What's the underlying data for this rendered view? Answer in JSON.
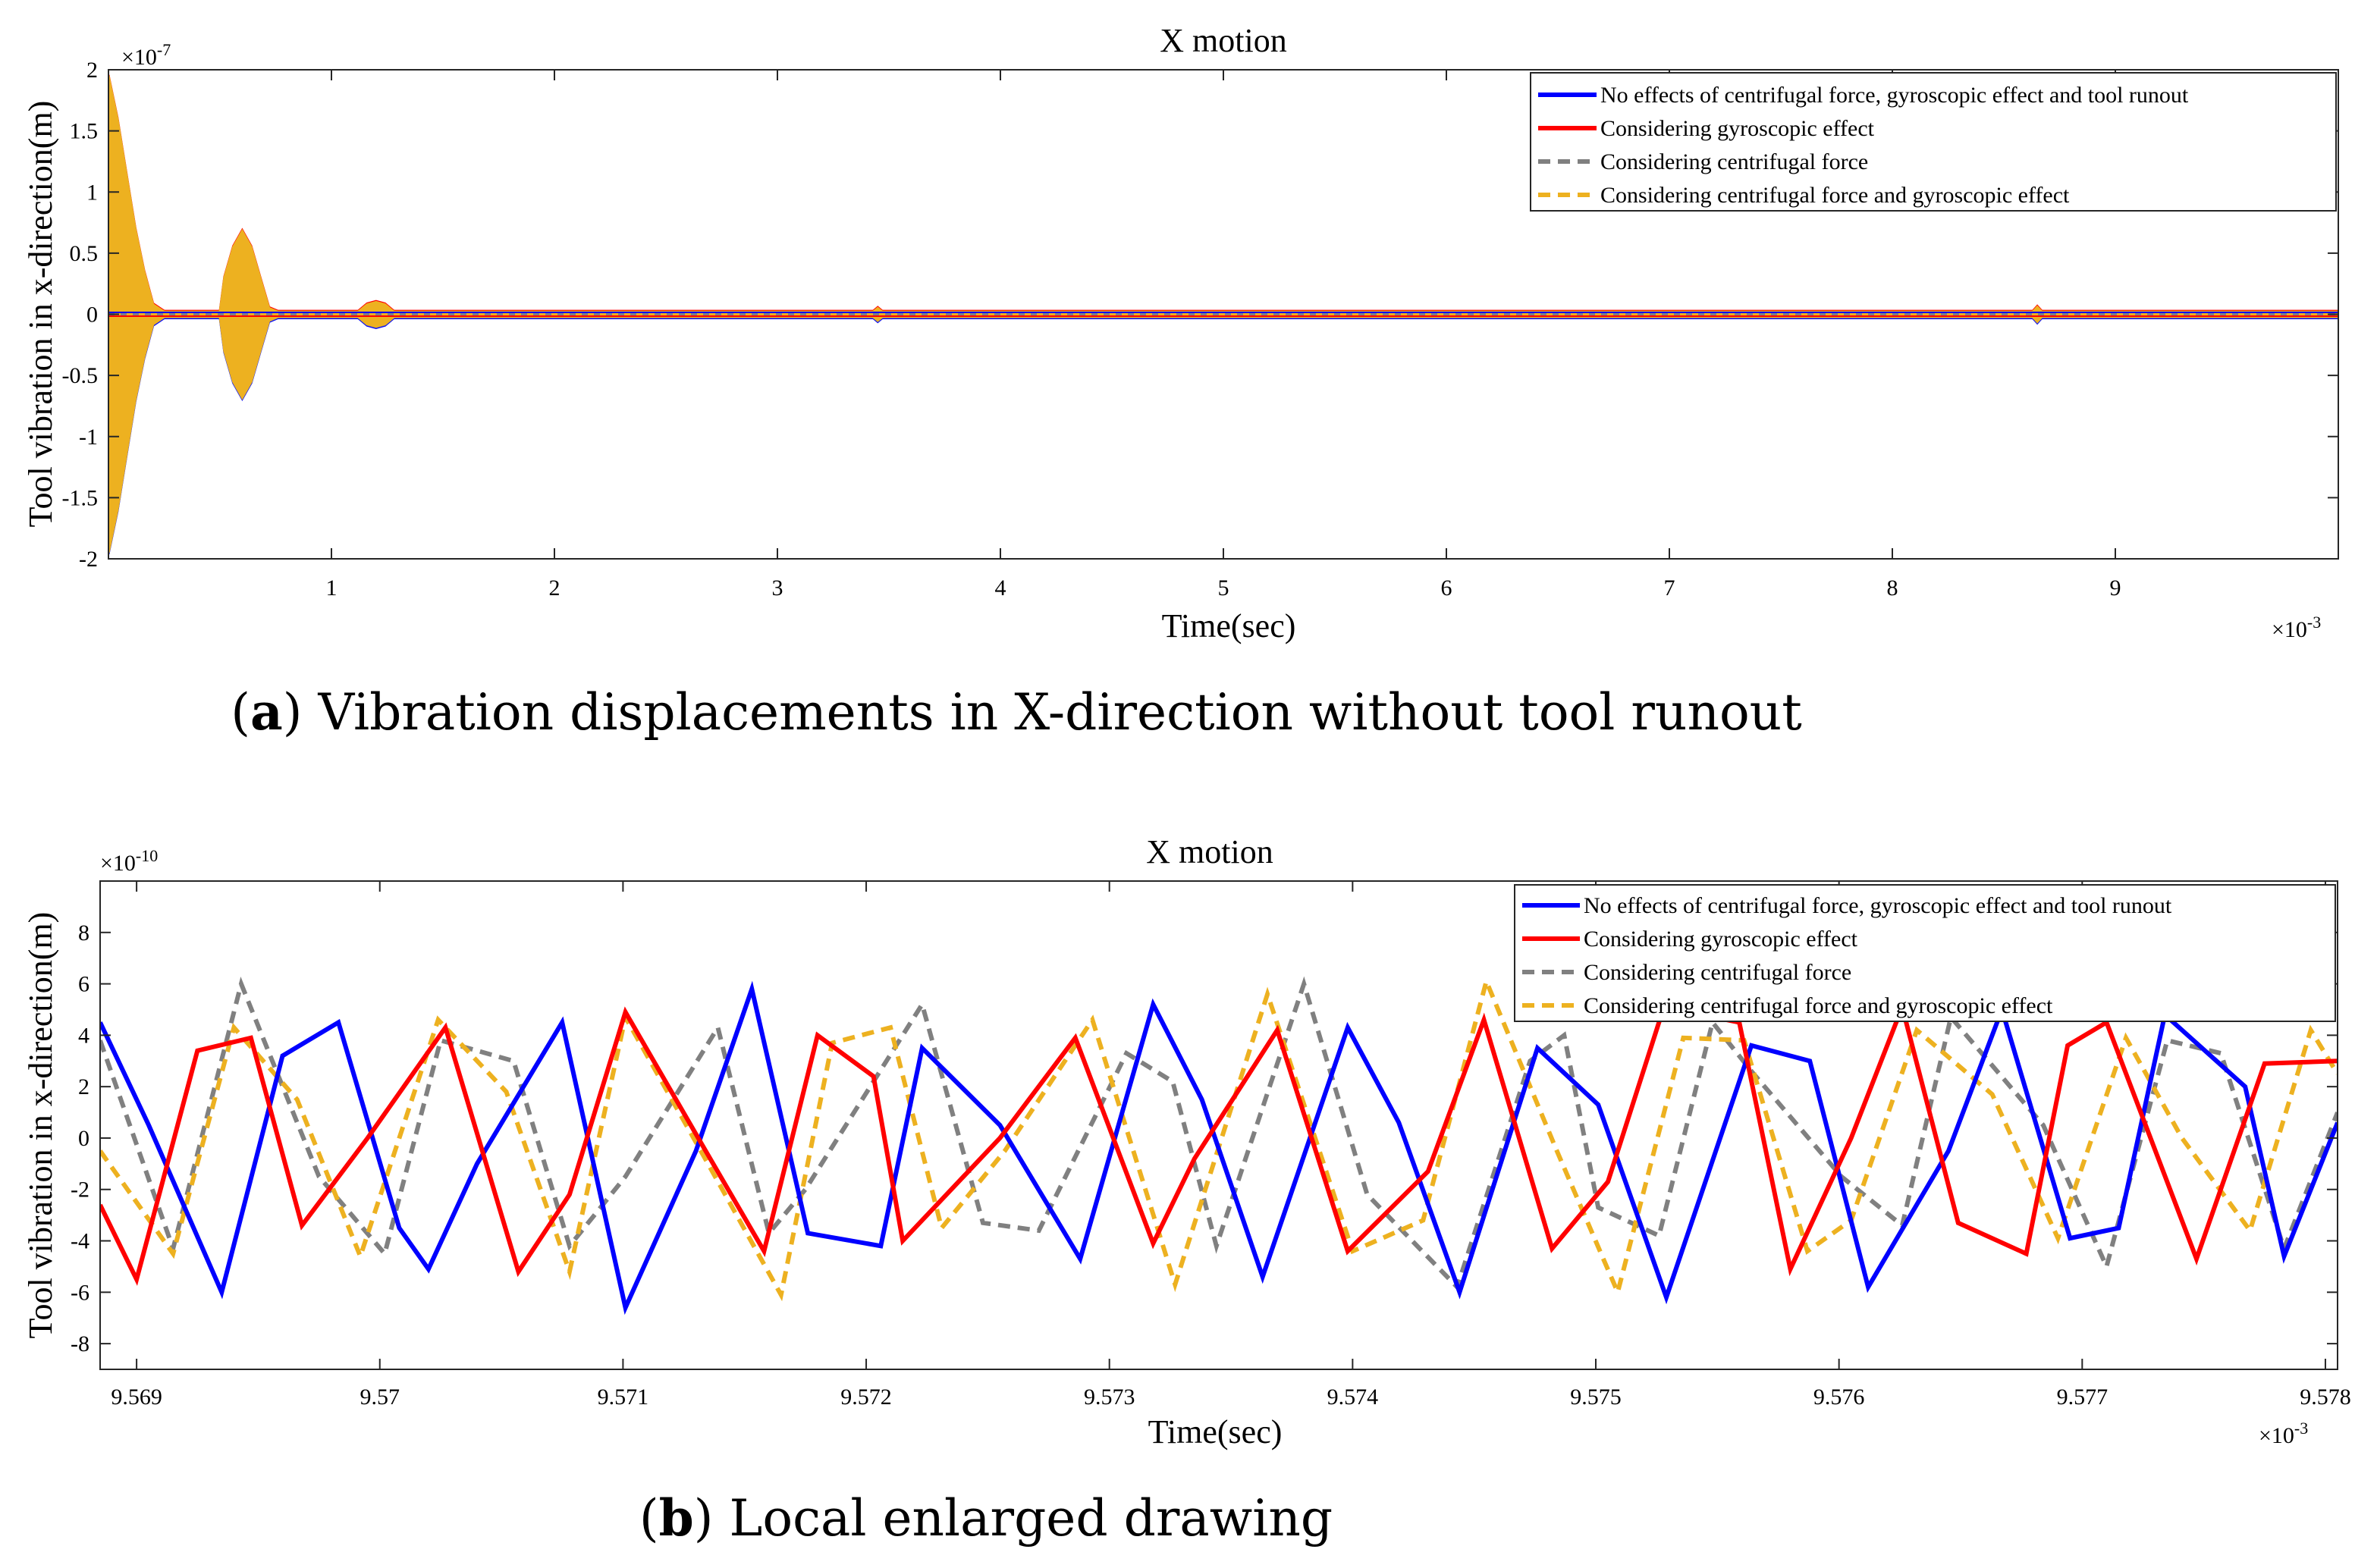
{
  "figure": {
    "caption_a_letter": "a",
    "caption_a_text": " Vibration displacements in X-direction without tool runout",
    "caption_b_letter": "b",
    "caption_b_text": " Local enlarged drawing"
  },
  "colors": {
    "blue": "#0000ff",
    "red": "#ff0000",
    "gray": "#808080",
    "orange": "#edb120",
    "axes": "#262626"
  },
  "chart_data": [
    {
      "type": "line",
      "title": "X motion",
      "xlabel": "Time(sec)",
      "ylabel": "Tool vibration in x-direction(m)",
      "x_exponent": "×10",
      "x_exponent_power": "-3",
      "y_exponent": "×10",
      "y_exponent_power": "-7",
      "xlim": [
        0,
        10
      ],
      "ylim": [
        -2,
        2
      ],
      "x_ticks": [
        1,
        2,
        3,
        4,
        5,
        6,
        7,
        8,
        9
      ],
      "x_tick_labels": [
        "1",
        "2",
        "3",
        "4",
        "5",
        "6",
        "7",
        "8",
        "9"
      ],
      "y_ticks": [
        -2,
        -1.5,
        -1,
        -0.5,
        0,
        0.5,
        1,
        1.5,
        2
      ],
      "y_tick_labels": [
        "-2",
        "-1.5",
        "-1",
        "-0.5",
        "0",
        "0.5",
        "1",
        "1.5",
        "2"
      ],
      "legend_position": "top-right",
      "series": [
        {
          "name": "No effects of centrifugal force, gyroscopic effect and tool runout",
          "color": "#0000ff",
          "style": "solid"
        },
        {
          "name": "Considering gyroscopic effect",
          "color": "#ff0000",
          "style": "solid"
        },
        {
          "name": "Considering centrifugal force",
          "color": "#808080",
          "style": "dashed"
        },
        {
          "name": "Considering centrifugal force and gyroscopic effect",
          "color": "#edb120",
          "style": "dashed"
        }
      ],
      "envelope": [
        [
          0,
          1.95
        ],
        [
          0.04,
          1.6
        ],
        [
          0.08,
          1.15
        ],
        [
          0.12,
          0.7
        ],
        [
          0.16,
          0.35
        ],
        [
          0.2,
          0.08
        ],
        [
          0.25,
          0.02
        ],
        [
          0.5,
          0.02
        ],
        [
          0.52,
          0.3
        ],
        [
          0.56,
          0.55
        ],
        [
          0.6,
          0.68
        ],
        [
          0.64,
          0.55
        ],
        [
          0.68,
          0.3
        ],
        [
          0.72,
          0.05
        ],
        [
          0.76,
          0.02
        ],
        [
          1.12,
          0.02
        ],
        [
          1.16,
          0.08
        ],
        [
          1.2,
          0.1
        ],
        [
          1.24,
          0.08
        ],
        [
          1.28,
          0.02
        ],
        [
          3.43,
          0.02
        ],
        [
          3.45,
          0.05
        ],
        [
          3.47,
          0.02
        ],
        [
          8.63,
          0.02
        ],
        [
          8.65,
          0.06
        ],
        [
          8.67,
          0.02
        ],
        [
          10,
          0.02
        ]
      ]
    },
    {
      "type": "line",
      "title": "X motion",
      "xlabel": "Time(sec)",
      "ylabel": "Tool vibration in x-direction(m)",
      "x_exponent": "×10",
      "x_exponent_power": "-3",
      "y_exponent": "×10",
      "y_exponent_power": "-10",
      "xlim": [
        9.56885,
        9.57805
      ],
      "ylim": [
        -9,
        10
      ],
      "x_ticks": [
        9.569,
        9.57,
        9.571,
        9.572,
        9.573,
        9.574,
        9.575,
        9.576,
        9.577,
        9.578
      ],
      "x_tick_labels": [
        "9.569",
        "9.57",
        "9.571",
        "9.572",
        "9.573",
        "9.574",
        "9.575",
        "9.576",
        "9.577",
        "9.578"
      ],
      "y_ticks": [
        -8,
        -6,
        -4,
        -2,
        0,
        2,
        4,
        6,
        8
      ],
      "y_tick_labels": [
        "-8",
        "-6",
        "-4",
        "-2",
        "0",
        "2",
        "4",
        "6",
        "8"
      ],
      "legend_position": "top-right",
      "series": [
        {
          "name": "No effects of centrifugal force, gyroscopic effect and tool runout",
          "color": "#0000ff",
          "style": "solid",
          "points": [
            [
              9.56885,
              4.5
            ],
            [
              9.56905,
              0.5
            ],
            [
              9.56935,
              -6
            ],
            [
              9.5696,
              3.2
            ],
            [
              9.56983,
              4.5
            ],
            [
              9.57008,
              -3.5
            ],
            [
              9.5702,
              -5.1
            ],
            [
              9.5704,
              -1
            ],
            [
              9.57075,
              4.5
            ],
            [
              9.57101,
              -6.6
            ],
            [
              9.5713,
              -0.5
            ],
            [
              9.57153,
              5.8
            ],
            [
              9.57176,
              -3.7
            ],
            [
              9.57206,
              -4.2
            ],
            [
              9.57223,
              3.5
            ],
            [
              9.57255,
              0.5
            ],
            [
              9.57288,
              -4.7
            ],
            [
              9.57318,
              5.2
            ],
            [
              9.57338,
              1.5
            ],
            [
              9.57363,
              -5.4
            ],
            [
              9.57398,
              4.3
            ],
            [
              9.57419,
              0.6
            ],
            [
              9.57444,
              -6
            ],
            [
              9.57476,
              3.5
            ],
            [
              9.57501,
              1.3
            ],
            [
              9.57529,
              -6.2
            ],
            [
              9.57564,
              3.6
            ],
            [
              9.57588,
              3
            ],
            [
              9.57612,
              -5.8
            ],
            [
              9.57645,
              -0.5
            ],
            [
              9.57667,
              5
            ],
            [
              9.57695,
              -3.9
            ],
            [
              9.57715,
              -3.5
            ],
            [
              9.57734,
              4.8
            ],
            [
              9.57767,
              2
            ],
            [
              9.57783,
              -4.6
            ],
            [
              9.57805,
              0.6
            ]
          ]
        },
        {
          "name": "Considering gyroscopic effect",
          "color": "#ff0000",
          "style": "solid",
          "points": [
            [
              9.56885,
              -2.6
            ],
            [
              9.569,
              -5.5
            ],
            [
              9.56925,
              3.4
            ],
            [
              9.56947,
              3.9
            ],
            [
              9.56968,
              -3.4
            ],
            [
              9.56995,
              0
            ],
            [
              9.57027,
              4.3
            ],
            [
              9.57057,
              -5.2
            ],
            [
              9.57078,
              -2.2
            ],
            [
              9.57101,
              4.9
            ],
            [
              9.57134,
              -0.5
            ],
            [
              9.57158,
              -4.4
            ],
            [
              9.5718,
              4
            ],
            [
              9.57203,
              2.4
            ],
            [
              9.57215,
              -4
            ],
            [
              9.57255,
              0
            ],
            [
              9.57286,
              3.9
            ],
            [
              9.57318,
              -4.1
            ],
            [
              9.57335,
              -0.8
            ],
            [
              9.57369,
              4.2
            ],
            [
              9.57398,
              -4.4
            ],
            [
              9.57431,
              -1.3
            ],
            [
              9.57454,
              4.6
            ],
            [
              9.57482,
              -4.3
            ],
            [
              9.57505,
              -1.7
            ],
            [
              9.57528,
              5.1
            ],
            [
              9.57559,
              4.5
            ],
            [
              9.5758,
              -5.1
            ],
            [
              9.57605,
              0
            ],
            [
              9.57626,
              5.1
            ],
            [
              9.57649,
              -3.3
            ],
            [
              9.57677,
              -4.5
            ],
            [
              9.57694,
              3.6
            ],
            [
              9.5771,
              4.5
            ],
            [
              9.57747,
              -4.7
            ],
            [
              9.57775,
              2.9
            ],
            [
              9.57805,
              3
            ]
          ]
        },
        {
          "name": "Considering centrifugal force",
          "color": "#808080",
          "style": "dashed",
          "points": [
            [
              9.56885,
              3.8
            ],
            [
              9.56915,
              -4.3
            ],
            [
              9.56943,
              6
            ],
            [
              9.56975,
              -1.5
            ],
            [
              9.57002,
              -4.5
            ],
            [
              9.57025,
              3.8
            ],
            [
              9.57055,
              3
            ],
            [
              9.57078,
              -4.2
            ],
            [
              9.57101,
              -1.5
            ],
            [
              9.57139,
              4.3
            ],
            [
              9.5716,
              -3.7
            ],
            [
              9.57175,
              -2
            ],
            [
              9.57223,
              5.2
            ],
            [
              9.57248,
              -3.3
            ],
            [
              9.57271,
              -3.6
            ],
            [
              9.57307,
              3.3
            ],
            [
              9.57326,
              2.2
            ],
            [
              9.57344,
              -4.2
            ],
            [
              9.5738,
              6
            ],
            [
              9.57406,
              -2.2
            ],
            [
              9.57443,
              -5.8
            ],
            [
              9.57473,
              3
            ],
            [
              9.57487,
              4
            ],
            [
              9.57501,
              -2.7
            ],
            [
              9.57526,
              -3.8
            ],
            [
              9.57548,
              4.5
            ],
            [
              9.57564,
              2.6
            ],
            [
              9.57601,
              -1.5
            ],
            [
              9.57626,
              -3.4
            ],
            [
              9.57646,
              4.7
            ],
            [
              9.57684,
              0.5
            ],
            [
              9.5771,
              -5
            ],
            [
              9.57735,
              3.8
            ],
            [
              9.57757,
              3.3
            ],
            [
              9.57783,
              -4.3
            ],
            [
              9.57805,
              1
            ]
          ]
        },
        {
          "name": "Considering centrifugal force and gyroscopic effect",
          "color": "#edb120",
          "style": "dashed",
          "points": [
            [
              9.56885,
              -0.5
            ],
            [
              9.56915,
              -4.5
            ],
            [
              9.5694,
              4.3
            ],
            [
              9.56966,
              1.5
            ],
            [
              9.56992,
              -4.6
            ],
            [
              9.57024,
              4.6
            ],
            [
              9.57052,
              1.8
            ],
            [
              9.57078,
              -5.2
            ],
            [
              9.57101,
              4.7
            ],
            [
              9.57132,
              -0.5
            ],
            [
              9.57165,
              -6.1
            ],
            [
              9.57186,
              3.7
            ],
            [
              9.5721,
              4.3
            ],
            [
              9.57231,
              -3.5
            ],
            [
              9.57257,
              -0.5
            ],
            [
              9.57293,
              4.6
            ],
            [
              9.57327,
              -5.7
            ],
            [
              9.57365,
              5.6
            ],
            [
              9.574,
              -4.4
            ],
            [
              9.57429,
              -3.2
            ],
            [
              9.57455,
              6.1
            ],
            [
              9.57484,
              -0.5
            ],
            [
              9.57509,
              -6
            ],
            [
              9.57536,
              3.9
            ],
            [
              9.57561,
              3.8
            ],
            [
              9.57587,
              -4.4
            ],
            [
              9.57605,
              -3.2
            ],
            [
              9.57632,
              4.2
            ],
            [
              9.57663,
              1.7
            ],
            [
              9.5769,
              -3.9
            ],
            [
              9.57718,
              3.9
            ],
            [
              9.57741,
              0
            ],
            [
              9.57769,
              -3.6
            ],
            [
              9.57794,
              4.2
            ],
            [
              9.57805,
              2.5
            ]
          ]
        }
      ]
    }
  ]
}
